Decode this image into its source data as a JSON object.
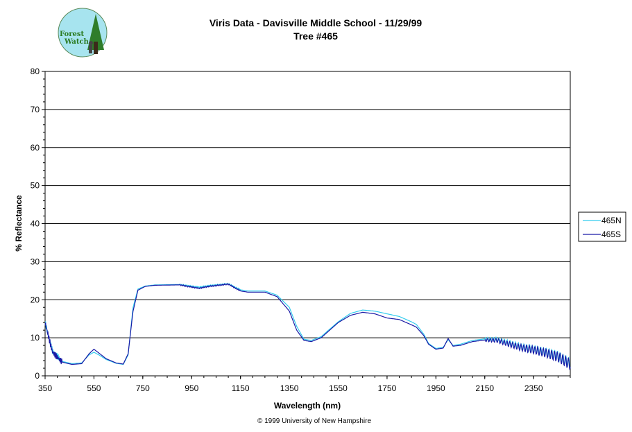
{
  "header": {
    "title_line1": "Viris Data - Davisville Middle School - 11/29/99",
    "title_line2": "Tree #465"
  },
  "logo": {
    "line1": "Forest",
    "line2": "Watch",
    "icon": "forest-watch-logo"
  },
  "footer": {
    "copyright": "© 1999 University of New Hampshire"
  },
  "chart_data": {
    "type": "line",
    "xlabel": "Wavelength (nm)",
    "ylabel": "% Reflectance",
    "xlim": [
      350,
      2500
    ],
    "ylim": [
      0,
      80
    ],
    "x_ticks": [
      350,
      550,
      750,
      950,
      1150,
      1350,
      1550,
      1750,
      1950,
      2150,
      2350
    ],
    "y_ticks": [
      0,
      10,
      20,
      30,
      40,
      50,
      60,
      70,
      80
    ],
    "grid": "horizontal major lines",
    "legend_position": "right",
    "x": [
      350,
      380,
      420,
      460,
      500,
      530,
      550,
      570,
      600,
      640,
      670,
      690,
      710,
      730,
      760,
      800,
      900,
      980,
      1020,
      1100,
      1150,
      1180,
      1250,
      1300,
      1350,
      1380,
      1410,
      1440,
      1480,
      1550,
      1600,
      1650,
      1700,
      1750,
      1800,
      1850,
      1870,
      1900,
      1920,
      1950,
      1980,
      2000,
      2020,
      2050,
      2100,
      2150,
      2200,
      2250,
      2300,
      2350,
      2400,
      2450,
      2480,
      2500
    ],
    "series": [
      {
        "name": "465N",
        "color": "#33ccee",
        "values": [
          14,
          6.5,
          3.8,
          3.2,
          3.4,
          5.5,
          6.2,
          5.5,
          4.3,
          3.3,
          3.0,
          5.5,
          18,
          22.8,
          23.6,
          23.9,
          24.0,
          23.3,
          23.7,
          24.2,
          22.6,
          22.3,
          22.3,
          21.2,
          18.0,
          13.0,
          9.6,
          9.3,
          10.3,
          14.2,
          16.4,
          17.3,
          17.0,
          16.3,
          15.6,
          14.2,
          13.5,
          11.0,
          8.5,
          7.2,
          7.5,
          9.5,
          8.0,
          8.3,
          9.3,
          9.7,
          9.6,
          8.6,
          7.6,
          7.0,
          6.2,
          5.2,
          4.0,
          3.2
        ]
      },
      {
        "name": "465S",
        "color": "#1a1aa6",
        "values": [
          14,
          6.2,
          3.6,
          3.0,
          3.2,
          5.8,
          7.0,
          6.0,
          4.5,
          3.4,
          3.1,
          5.8,
          17,
          22.5,
          23.5,
          23.8,
          23.9,
          23.0,
          23.5,
          24.1,
          22.3,
          22.0,
          22.0,
          20.8,
          17.0,
          12.0,
          9.3,
          9.0,
          10.0,
          14.0,
          15.9,
          16.7,
          16.3,
          15.2,
          14.8,
          13.4,
          12.8,
          10.6,
          8.3,
          7.0,
          7.3,
          9.8,
          7.8,
          8.0,
          9.0,
          9.4,
          9.3,
          8.3,
          7.4,
          6.8,
          6.0,
          5.0,
          3.8,
          3.0
        ]
      }
    ]
  }
}
